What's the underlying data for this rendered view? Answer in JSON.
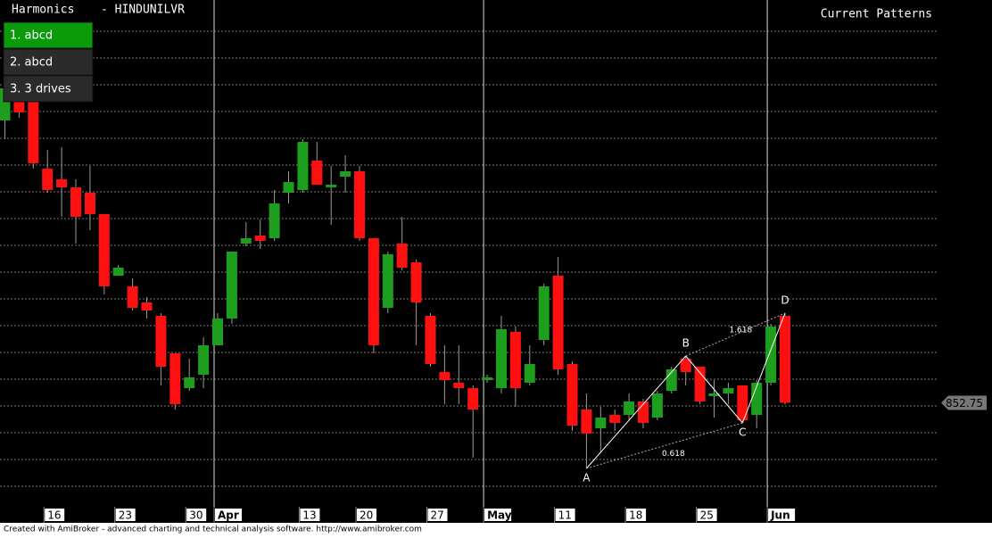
{
  "chart_data": {
    "type": "candlestick",
    "title": "Harmonics",
    "symbol": "- HINDUNILVR",
    "panel_title": "Current Patterns",
    "menu": {
      "items": [
        "1. abcd",
        "2. abcd",
        "3. 3 drives"
      ],
      "selected": 0
    },
    "categories": [
      null,
      null,
      null,
      "16",
      null,
      null,
      null,
      null,
      "23",
      null,
      null,
      null,
      null,
      "30",
      null,
      "Apr",
      null,
      null,
      null,
      null,
      null,
      "13",
      null,
      null,
      null,
      "20",
      null,
      null,
      null,
      null,
      "27",
      null,
      null,
      null,
      "May",
      null,
      null,
      null,
      null,
      "11",
      null,
      null,
      null,
      null,
      "18",
      null,
      null,
      null,
      null,
      "25",
      null,
      null,
      null,
      null,
      "Jun",
      null
    ],
    "open": [
      905.5,
      909,
      909.5,
      896.5,
      894.5,
      893,
      892,
      888,
      876.5,
      874.5,
      871.5,
      869,
      862,
      855.5,
      858,
      863.5,
      868.5,
      882.5,
      884,
      883.5,
      892,
      892.5,
      898,
      893,
      895,
      896,
      883.5,
      870.5,
      882.5,
      879,
      869,
      858.5,
      856.5,
      855.5,
      857,
      855.5,
      866,
      856.5,
      864.5,
      876.5,
      860,
      851.5,
      848,
      850.5,
      850.5,
      853,
      850,
      855,
      861,
      859.5,
      854,
      854.5,
      856,
      850.5,
      856.5,
      869
    ],
    "high": [
      913.5,
      911,
      911,
      900,
      900.5,
      894.5,
      897,
      888,
      878.5,
      876,
      872.5,
      869.5,
      862,
      861,
      865,
      869.5,
      881,
      886.5,
      887,
      892.5,
      896,
      902,
      901.5,
      897,
      899,
      897,
      883.5,
      881,
      887.5,
      879.5,
      869.5,
      863.5,
      863.5,
      856,
      858,
      869,
      867,
      863.5,
      875,
      880,
      860.5,
      854.5,
      852,
      851.5,
      854.5,
      853.5,
      855,
      859.5,
      861.5,
      859.5,
      857,
      856.5,
      856,
      857,
      867.5,
      869.5
    ],
    "low": [
      902,
      906,
      896.5,
      892,
      887.5,
      882.5,
      885,
      873,
      876.5,
      870,
      868.5,
      856,
      851.5,
      855,
      855.5,
      863.5,
      867.5,
      882,
      881.5,
      883,
      890,
      892,
      893.5,
      886,
      892,
      883,
      862,
      869.5,
      877.5,
      863.5,
      859.5,
      852.5,
      852.5,
      842.5,
      856.5,
      854.5,
      852,
      856,
      863.5,
      858,
      847.5,
      840.5,
      843.5,
      847.5,
      849.5,
      848,
      849.5,
      854.5,
      856,
      852.5,
      850,
      852.5,
      849,
      848,
      856,
      852.5
    ],
    "close": [
      911.5,
      907,
      897.5,
      892.5,
      893,
      887.5,
      888,
      874.5,
      878,
      870.5,
      870,
      859.5,
      852.5,
      857.5,
      863.5,
      868.5,
      881,
      883.5,
      883,
      890,
      894,
      901.5,
      893.5,
      893.5,
      896,
      883.5,
      863.5,
      880.5,
      878,
      871.5,
      860,
      857,
      855.5,
      851.5,
      857.5,
      866.5,
      855.5,
      860,
      874.5,
      859,
      848.5,
      847,
      850,
      849,
      853,
      849,
      854.5,
      859,
      858.5,
      853,
      854.5,
      855.5,
      849.5,
      856.5,
      867,
      852.75
    ],
    "up_color": "#1e9e1e",
    "down_color": "#ff1010",
    "ylim": [
      834,
      928
    ],
    "pattern": {
      "points": [
        {
          "label": "A",
          "value": 840.5
        },
        {
          "label": "B",
          "value": 861.5
        },
        {
          "label": "C",
          "value": 849
        },
        {
          "label": "D",
          "value": 869.5
        }
      ],
      "ratios": [
        0.618,
        1.618
      ]
    },
    "footer": "Created with AmiBroker - advanced charting and technical analysis software. http://www.amibroker.com"
  }
}
